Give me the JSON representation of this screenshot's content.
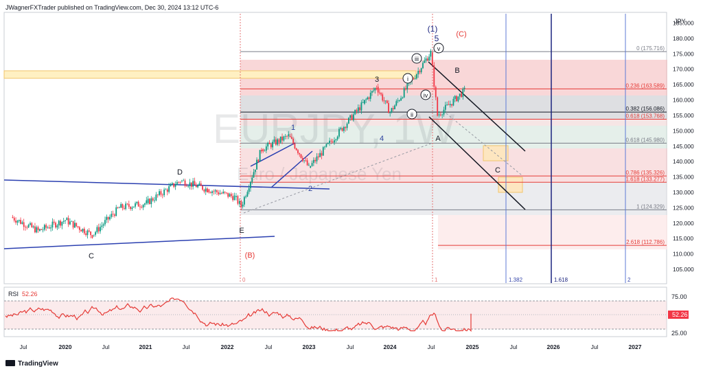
{
  "header": {
    "publisher": "JWagnerFXTrader published on TradingView.com, Dec 30, 2024 13:12 UTC-6"
  },
  "price_axis": {
    "currency": "JPY",
    "ticks": [
      "185.000",
      "180.000",
      "175.000",
      "170.000",
      "165.000",
      "160.000",
      "155.000",
      "150.000",
      "145.000",
      "140.000",
      "135.000",
      "130.000",
      "125.000",
      "120.000",
      "115.000",
      "110.000",
      "105.000"
    ]
  },
  "time_axis": {
    "ticks": [
      "Jul",
      "2020",
      "Jul",
      "2021",
      "Jul",
      "2022",
      "Jul",
      "2023",
      "Jul",
      "2024",
      "Jul",
      "2025",
      "Jul",
      "2026",
      "Jul",
      "2027"
    ]
  },
  "watermark": {
    "symbol": "EURJPY, 1W",
    "name": "Euro / Japanese Yen"
  },
  "fib_levels": [
    {
      "label": "0 (175.716)",
      "price": 175.716,
      "color": "#787b86"
    },
    {
      "label": "0.236 (163.589)",
      "price": 163.589,
      "color": "#e53935"
    },
    {
      "label": "0.382 (156.086)",
      "price": 156.086,
      "color": "#131722"
    },
    {
      "label": "0.618 (153.768)",
      "price": 153.768,
      "color": "#e53935"
    },
    {
      "label": "0.618 (145.980)",
      "price": 145.98,
      "color": "#787b86"
    },
    {
      "label": "0.786 (135.326)",
      "price": 135.326,
      "color": "#e53935"
    },
    {
      "label": "1.618 (133.277)",
      "price": 133.277,
      "color": "#e53935"
    },
    {
      "label": "1 (124.329)",
      "price": 124.329,
      "color": "#787b86"
    },
    {
      "label": "2.618 (112.786)",
      "price": 112.786,
      "color": "#e53935"
    }
  ],
  "time_fib": [
    "0",
    "1",
    "1.382",
    "1.618",
    "2"
  ],
  "wave_labels": [
    {
      "text": "(1)",
      "color": "#1a237e"
    },
    {
      "text": "5",
      "color": "#1a237e"
    },
    {
      "text": "(C)",
      "color": "#e53935"
    },
    {
      "text": "v",
      "color": "#131722"
    },
    {
      "text": "iii",
      "color": "#131722"
    },
    {
      "text": "i",
      "color": "#131722"
    },
    {
      "text": "iv",
      "color": "#131722"
    },
    {
      "text": "ii",
      "color": "#131722"
    },
    {
      "text": "3",
      "color": "#131722"
    },
    {
      "text": "4",
      "color": "#2a3f9d"
    },
    {
      "text": "1",
      "color": "#2a3f9d"
    },
    {
      "text": "2",
      "color": "#2a3f9d"
    },
    {
      "text": "B",
      "color": "#131722"
    },
    {
      "text": "A",
      "color": "#131722"
    },
    {
      "text": "C",
      "color": "#131722"
    },
    {
      "text": "D",
      "color": "#131722"
    },
    {
      "text": "E",
      "color": "#131722"
    },
    {
      "text": "C",
      "color": "#131722"
    },
    {
      "text": "(B)",
      "color": "#e53935"
    }
  ],
  "rsi": {
    "label": "RSI",
    "value": "52.26",
    "levels": [
      "75.00",
      "25.00"
    ]
  },
  "footer": {
    "brand": "TradingView"
  },
  "chart_data": {
    "type": "candlestick",
    "symbol": "EURJPY",
    "timeframe": "1W",
    "ylim": [
      101,
      188
    ],
    "ohlc_approx": [
      {
        "date": "2019-05",
        "close": 122
      },
      {
        "date": "2019-09",
        "close": 117.5
      },
      {
        "date": "2020-01",
        "close": 121
      },
      {
        "date": "2020-05",
        "close": 116.2
      },
      {
        "date": "2020-09",
        "close": 125
      },
      {
        "date": "2021-01",
        "close": 126.5
      },
      {
        "date": "2021-06",
        "close": 133.8
      },
      {
        "date": "2021-10",
        "close": 131
      },
      {
        "date": "2022-02",
        "close": 128.5
      },
      {
        "date": "2022-03",
        "close": 125.4
      },
      {
        "date": "2022-06",
        "close": 144
      },
      {
        "date": "2022-10",
        "close": 148.3
      },
      {
        "date": "2023-01",
        "close": 138
      },
      {
        "date": "2023-09",
        "close": 158.8
      },
      {
        "date": "2023-11",
        "close": 164.3
      },
      {
        "date": "2024-01",
        "close": 156
      },
      {
        "date": "2024-07",
        "close": 175.4
      },
      {
        "date": "2024-08",
        "close": 155
      },
      {
        "date": "2024-12",
        "close": 163
      }
    ],
    "rsi_value": 52.26
  }
}
